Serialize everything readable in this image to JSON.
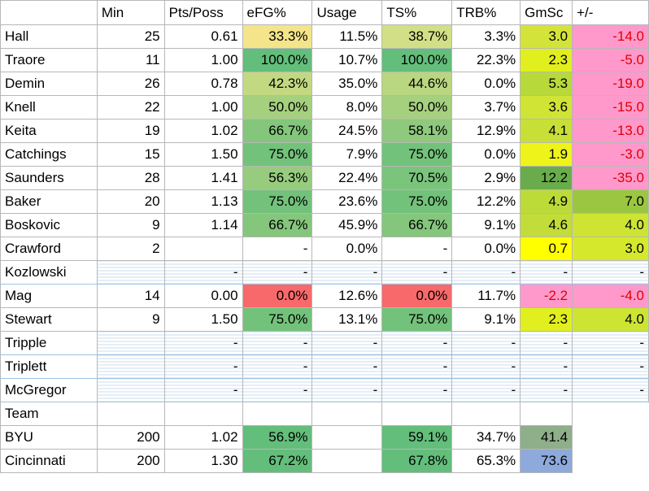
{
  "table": {
    "columns": [
      "",
      "Min",
      "Pts/Poss",
      "eFG%",
      "Usage",
      "TS%",
      "TRB%",
      "GmSc",
      "+/-"
    ],
    "rows": [
      {
        "cells": [
          "Hall",
          "25",
          "0.61",
          "33.3%",
          "11.5%",
          "38.7%",
          "3.3%",
          "3.0",
          "-14.0"
        ],
        "colors": [
          "",
          "",
          "",
          "#f4e48a",
          "",
          "#d3df86",
          "",
          "#d4e33a",
          "#ff99cc"
        ]
      },
      {
        "cells": [
          "Traore",
          "11",
          "1.00",
          "100.0%",
          "10.7%",
          "100.0%",
          "22.3%",
          "2.3",
          "-5.0"
        ],
        "colors": [
          "",
          "",
          "",
          "#63be7b",
          "",
          "#63be7b",
          "",
          "#e1ef1e",
          "#ff99cc"
        ]
      },
      {
        "cells": [
          "Demin",
          "26",
          "0.78",
          "42.3%",
          "35.0%",
          "44.6%",
          "0.0%",
          "5.3",
          "-19.0"
        ],
        "colors": [
          "",
          "",
          "",
          "#c2d982",
          "",
          "#b9d680",
          "",
          "#b7d93a",
          "#ff99cc"
        ]
      },
      {
        "cells": [
          "Knell",
          "22",
          "1.00",
          "50.0%",
          "8.0%",
          "50.0%",
          "3.7%",
          "3.6",
          "-15.0"
        ],
        "colors": [
          "",
          "",
          "",
          "#a5d07e",
          "",
          "#a5d07e",
          "",
          "#d0e436",
          "#ff99cc"
        ]
      },
      {
        "cells": [
          "Keita",
          "19",
          "1.02",
          "66.7%",
          "24.5%",
          "58.1%",
          "12.9%",
          "4.1",
          "-13.0"
        ],
        "colors": [
          "",
          "",
          "",
          "#84c67c",
          "",
          "#8ec97d",
          "",
          "#c8df38",
          "#ff99cc"
        ]
      },
      {
        "cells": [
          "Catchings",
          "15",
          "1.50",
          "75.0%",
          "7.9%",
          "75.0%",
          "0.0%",
          "1.9",
          "-3.0"
        ],
        "colors": [
          "",
          "",
          "",
          "#73c27b",
          "",
          "#73c27b",
          "",
          "#eef41a",
          "#ff99cc"
        ]
      },
      {
        "cells": [
          "Saunders",
          "28",
          "1.41",
          "56.3%",
          "22.4%",
          "70.5%",
          "2.9%",
          "12.2",
          "-35.0"
        ],
        "colors": [
          "",
          "",
          "",
          "#97cc7e",
          "",
          "#7ac47c",
          "",
          "#6aac4c",
          "#ff99cc"
        ]
      },
      {
        "cells": [
          "Baker",
          "20",
          "1.13",
          "75.0%",
          "23.6%",
          "75.0%",
          "12.2%",
          "4.9",
          "7.0"
        ],
        "colors": [
          "",
          "",
          "",
          "#73c27b",
          "",
          "#73c27b",
          "",
          "#bcdb39",
          "#9bc641"
        ]
      },
      {
        "cells": [
          "Boskovic",
          "9",
          "1.14",
          "66.7%",
          "45.9%",
          "66.7%",
          "9.1%",
          "4.6",
          "4.0"
        ],
        "colors": [
          "",
          "",
          "",
          "#84c67c",
          "",
          "#84c67c",
          "",
          "#c2dd39",
          "#cde433"
        ]
      },
      {
        "cells": [
          "Crawford",
          "2",
          "",
          "-",
          "0.0%",
          "-",
          "0.0%",
          "0.7",
          "3.0"
        ],
        "colors": [
          "",
          "",
          "",
          "",
          "",
          "",
          "",
          "#ffff00",
          "#d6e82c"
        ]
      },
      {
        "cells": [
          "Kozlowski",
          "",
          "-",
          "-",
          "-",
          "-",
          "-",
          "-",
          "-"
        ],
        "colors": [
          "",
          "",
          "",
          "",
          "",
          "",
          "",
          "",
          ""
        ],
        "hatched": true
      },
      {
        "cells": [
          "Mag",
          "14",
          "0.00",
          "0.0%",
          "12.6%",
          "0.0%",
          "11.7%",
          "-2.2",
          "-4.0"
        ],
        "colors": [
          "",
          "",
          "",
          "#f8696b",
          "",
          "#f8696b",
          "",
          "#ff99cc",
          "#ff99cc"
        ]
      },
      {
        "cells": [
          "Stewart",
          "9",
          "1.50",
          "75.0%",
          "13.1%",
          "75.0%",
          "9.1%",
          "2.3",
          "4.0"
        ],
        "colors": [
          "",
          "",
          "",
          "#73c27b",
          "",
          "#73c27b",
          "",
          "#e1ef1e",
          "#cde433"
        ]
      },
      {
        "cells": [
          "Tripple",
          "",
          "-",
          "-",
          "-",
          "-",
          "-",
          "-",
          "-"
        ],
        "colors": [
          "",
          "",
          "",
          "",
          "",
          "",
          "",
          "",
          ""
        ],
        "hatched": true
      },
      {
        "cells": [
          "Triplett",
          "",
          "-",
          "-",
          "-",
          "-",
          "-",
          "-",
          "-"
        ],
        "colors": [
          "",
          "",
          "",
          "",
          "",
          "",
          "",
          "",
          ""
        ],
        "hatched": true
      },
      {
        "cells": [
          "McGregor",
          "",
          "-",
          "-",
          "-",
          "-",
          "-",
          "-",
          "-"
        ],
        "colors": [
          "",
          "",
          "",
          "",
          "",
          "",
          "",
          "",
          ""
        ],
        "hatched": true
      },
      {
        "cells": [
          "Team",
          "",
          "",
          "",
          "",
          "",
          "",
          "",
          ""
        ],
        "colors": [
          "",
          "",
          "",
          "",
          "",
          "",
          "",
          "",
          ""
        ],
        "team_header": true
      },
      {
        "cells": [
          "BYU",
          "200",
          "1.02",
          "56.9%",
          "",
          "59.1%",
          "34.7%",
          "41.4",
          ""
        ],
        "colors": [
          "",
          "",
          "",
          "#63be7b",
          "",
          "#63be7b",
          "",
          "#8fae8a",
          ""
        ],
        "team_row": true
      },
      {
        "cells": [
          "Cincinnati",
          "200",
          "1.30",
          "67.2%",
          "",
          "67.8%",
          "65.3%",
          "73.6",
          ""
        ],
        "colors": [
          "",
          "",
          "",
          "#63be7b",
          "",
          "#63be7b",
          "",
          "#8ea9db",
          ""
        ],
        "team_row": true
      }
    ]
  }
}
